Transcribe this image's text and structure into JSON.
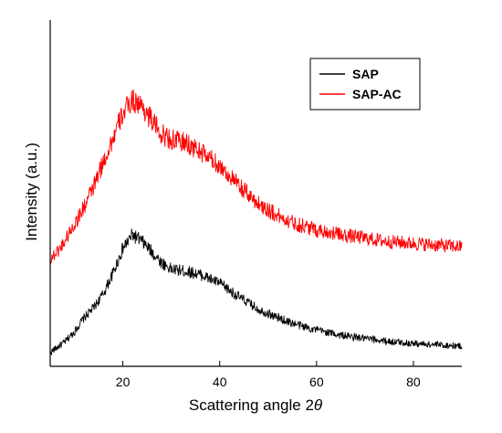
{
  "chart_data": {
    "type": "line",
    "title": "",
    "xlabel": "Scattering angle 2",
    "xlabel_symbol": "θ",
    "ylabel": "Intensity (a.u.)",
    "xlim": [
      5,
      90
    ],
    "ylim": [
      0,
      1
    ],
    "x_ticks": [
      20,
      40,
      60,
      80
    ],
    "y_ticks_shown": false,
    "grid": false,
    "legend": "top-right",
    "series": [
      {
        "name": "SAP",
        "color": "#000000",
        "points": [
          [
            5,
            0.04
          ],
          [
            8,
            0.07
          ],
          [
            10,
            0.1
          ],
          [
            12,
            0.14
          ],
          [
            14,
            0.17
          ],
          [
            16,
            0.21
          ],
          [
            18,
            0.27
          ],
          [
            20,
            0.34
          ],
          [
            22,
            0.38
          ],
          [
            24,
            0.36
          ],
          [
            26,
            0.33
          ],
          [
            28,
            0.3
          ],
          [
            30,
            0.28
          ],
          [
            33,
            0.275
          ],
          [
            36,
            0.265
          ],
          [
            40,
            0.24
          ],
          [
            44,
            0.2
          ],
          [
            48,
            0.165
          ],
          [
            52,
            0.14
          ],
          [
            56,
            0.12
          ],
          [
            60,
            0.105
          ],
          [
            65,
            0.09
          ],
          [
            70,
            0.08
          ],
          [
            75,
            0.072
          ],
          [
            80,
            0.066
          ],
          [
            85,
            0.062
          ],
          [
            90,
            0.058
          ]
        ]
      },
      {
        "name": "SAP-AC",
        "color": "#ff0000",
        "points": [
          [
            5,
            0.31
          ],
          [
            7,
            0.34
          ],
          [
            10,
            0.41
          ],
          [
            12,
            0.46
          ],
          [
            14,
            0.52
          ],
          [
            16,
            0.59
          ],
          [
            18,
            0.66
          ],
          [
            20,
            0.73
          ],
          [
            22,
            0.77
          ],
          [
            24,
            0.75
          ],
          [
            26,
            0.71
          ],
          [
            28,
            0.67
          ],
          [
            30,
            0.655
          ],
          [
            33,
            0.645
          ],
          [
            36,
            0.62
          ],
          [
            40,
            0.58
          ],
          [
            44,
            0.52
          ],
          [
            48,
            0.47
          ],
          [
            52,
            0.435
          ],
          [
            56,
            0.41
          ],
          [
            60,
            0.395
          ],
          [
            65,
            0.38
          ],
          [
            70,
            0.37
          ],
          [
            75,
            0.36
          ],
          [
            80,
            0.355
          ],
          [
            85,
            0.35
          ],
          [
            90,
            0.345
          ]
        ]
      }
    ]
  }
}
